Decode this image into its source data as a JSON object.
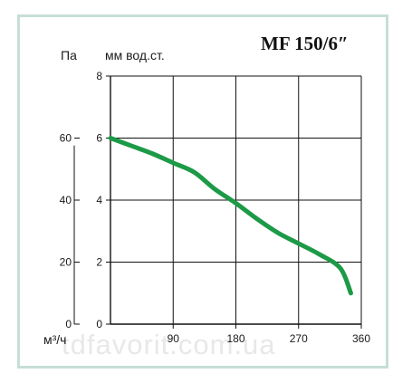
{
  "chart_data": {
    "type": "line",
    "title": "MF 150/6″",
    "ylabel_left": "Па",
    "ylabel_right": "мм вод.ст.",
    "xlabel": "м³/ч",
    "xlim": [
      0,
      360
    ],
    "ylim": [
      0,
      8
    ],
    "ylim_pa": [
      0,
      80
    ],
    "x_ticks": [
      90,
      180,
      270,
      360
    ],
    "y_ticks": [
      0,
      2,
      4,
      6,
      8
    ],
    "y_ticks_pa": [
      0,
      20,
      40,
      60
    ],
    "grid": true,
    "series": [
      {
        "color": "#1c9a47",
        "x": [
          0,
          30,
          60,
          90,
          120,
          150,
          180,
          210,
          240,
          270,
          300,
          330,
          345
        ],
        "y": [
          6.0,
          5.75,
          5.5,
          5.2,
          4.9,
          4.35,
          3.9,
          3.4,
          2.95,
          2.6,
          2.25,
          1.8,
          1.0
        ]
      }
    ],
    "watermark": "tdfavorit.com.ua"
  }
}
